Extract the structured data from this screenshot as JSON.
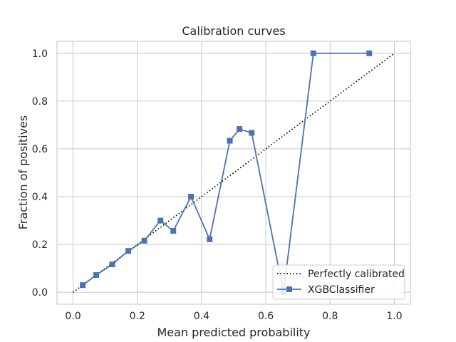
{
  "chart_data": {
    "type": "line",
    "title": "Calibration curves",
    "xlabel": "Mean predicted probability",
    "ylabel": "Fraction of positives",
    "xlim": [
      -0.05,
      1.05
    ],
    "ylim": [
      -0.05,
      1.05
    ],
    "xticks": [
      "0.0",
      "0.2",
      "0.4",
      "0.6",
      "0.8",
      "1.0"
    ],
    "yticks": [
      "0.0",
      "0.2",
      "0.4",
      "0.6",
      "0.8",
      "1.0"
    ],
    "grid": true,
    "legend_position": "lower-right",
    "series": [
      {
        "name": "Perfectly calibrated",
        "style": "dotted",
        "color": "#000000",
        "x": [
          0.0,
          1.0
        ],
        "y": [
          0.0,
          1.0
        ]
      },
      {
        "name": "XGBClassifier",
        "style": "line-square-markers",
        "color": "#4c72b0",
        "x": [
          0.03,
          0.072,
          0.122,
          0.172,
          0.222,
          0.272,
          0.312,
          0.367,
          0.425,
          0.488,
          0.518,
          0.556,
          0.655,
          0.748,
          0.922
        ],
        "y": [
          0.03,
          0.072,
          0.117,
          0.173,
          0.216,
          0.3,
          0.257,
          0.4,
          0.222,
          0.634,
          0.683,
          0.667,
          0.0,
          1.0,
          1.0
        ]
      }
    ]
  }
}
